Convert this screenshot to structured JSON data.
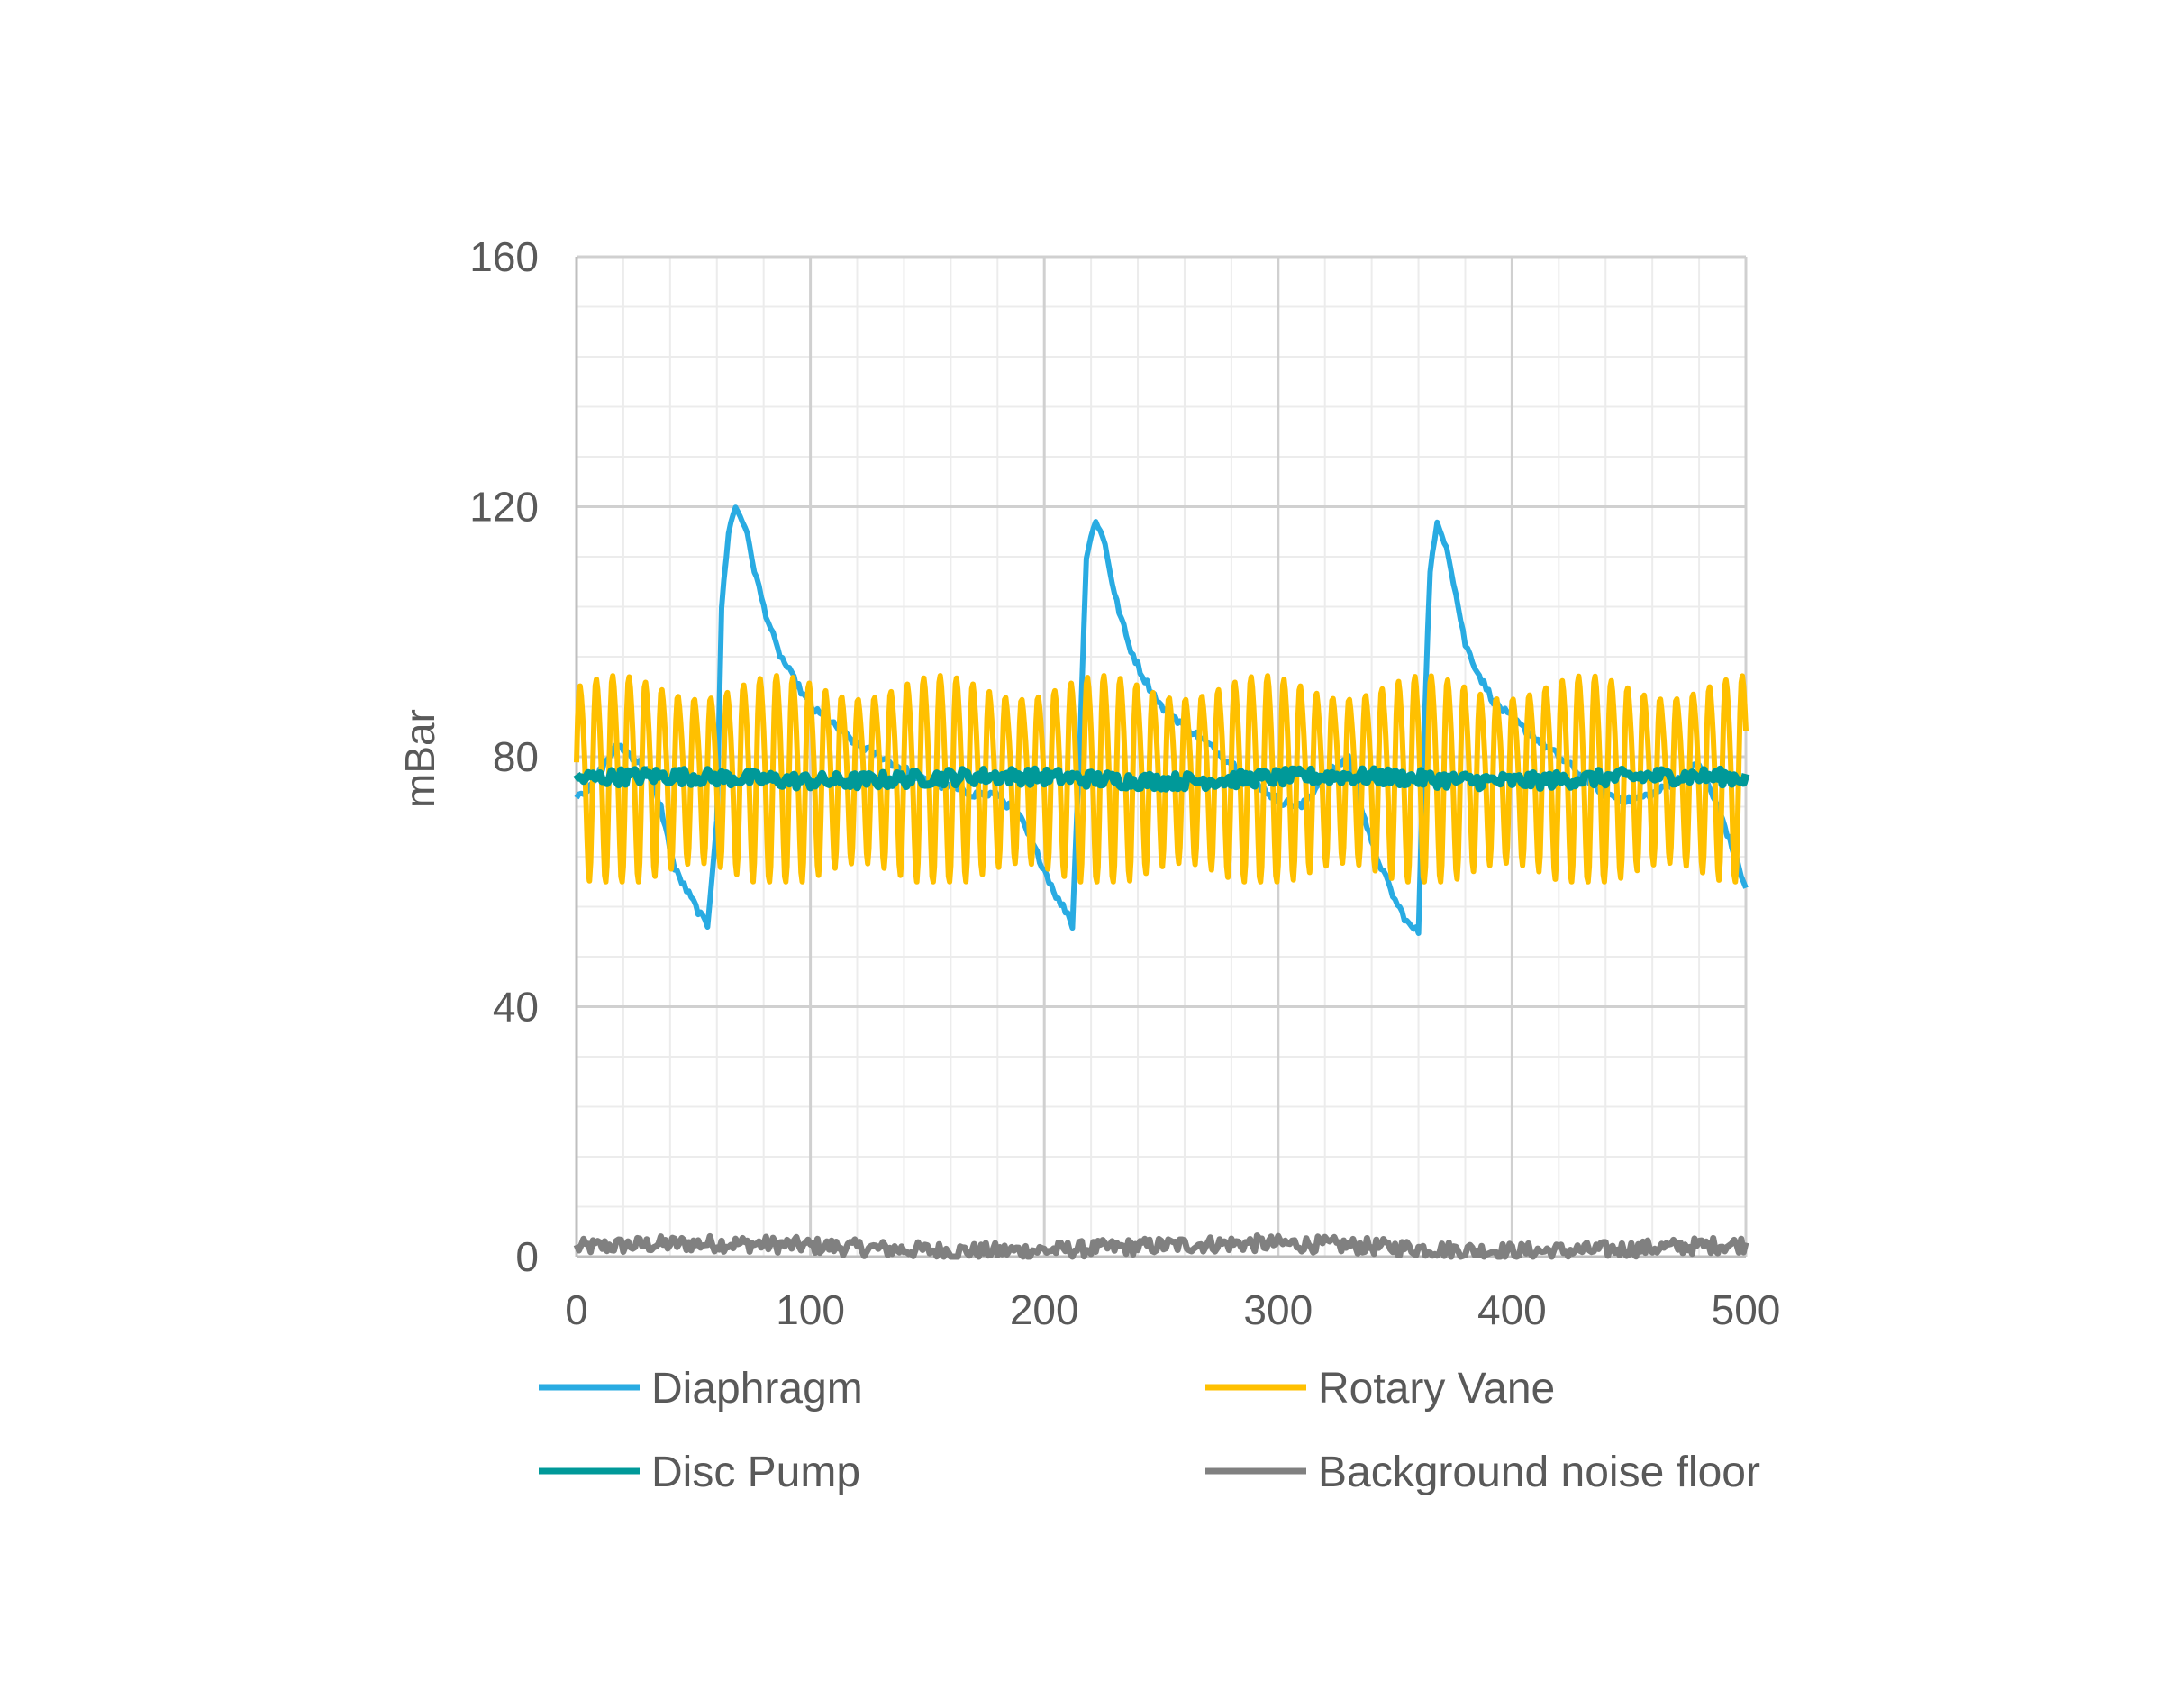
{
  "chart_data": {
    "type": "line",
    "title": "",
    "xlabel": "",
    "ylabel": "mBar",
    "xlim": [
      0,
      500
    ],
    "ylim": [
      0,
      160
    ],
    "x_ticks": [
      0,
      100,
      200,
      300,
      400,
      500
    ],
    "y_ticks": [
      0,
      40,
      80,
      120,
      160
    ],
    "x_tick_labels": [
      "0",
      "100",
      "200",
      "300",
      "400",
      "500"
    ],
    "y_tick_labels": [
      "0",
      "40",
      "80",
      "120",
      "160"
    ],
    "grid": true,
    "legend_position": "bottom",
    "series": [
      {
        "name": "Diaphragm",
        "color": "#29ABE2",
        "x": [
          0,
          6,
          12,
          18,
          24,
          30,
          36,
          42,
          48,
          54,
          56,
          60,
          62,
          65,
          68,
          72,
          76,
          80,
          86,
          92,
          100,
          110,
          120,
          130,
          140,
          150,
          160,
          170,
          180,
          190,
          200,
          206,
          210,
          212,
          215,
          218,
          222,
          226,
          230,
          236,
          242,
          250,
          260,
          270,
          280,
          290,
          300,
          310,
          320,
          330,
          340,
          350,
          356,
          360,
          362,
          365,
          368,
          372,
          376,
          380,
          386,
          392,
          400,
          410,
          420,
          430,
          440,
          450,
          460,
          470,
          480,
          490,
          500
        ],
        "y": [
          74,
          75,
          79,
          82,
          80,
          78,
          72,
          62,
          58,
          54,
          53,
          70,
          104,
          116,
          120,
          117,
          110,
          104,
          97,
          93,
          88,
          85,
          82,
          80,
          78,
          76,
          75,
          74,
          74,
          70,
          62,
          57,
          55,
          53,
          80,
          112,
          118,
          114,
          106,
          98,
          93,
          88,
          85,
          82,
          79,
          76,
          73,
          72,
          77,
          80,
          66,
          57,
          53,
          52,
          80,
          110,
          117,
          114,
          106,
          98,
          93,
          89,
          86,
          83,
          80,
          77,
          74,
          73,
          74,
          76,
          79,
          70,
          59
        ]
      },
      {
        "name": "Rotary Vane",
        "color": "#FFC000",
        "period": 7,
        "min": 61,
        "max": 94,
        "y_range": [
          60,
          95
        ]
      },
      {
        "name": "Disc Pump",
        "color": "#009999",
        "mean": 76.5,
        "y_range": [
          74,
          79
        ]
      },
      {
        "name": "Background noise floor",
        "color": "#808080",
        "mean": 1.5,
        "y_range": [
          0,
          4
        ]
      }
    ]
  }
}
